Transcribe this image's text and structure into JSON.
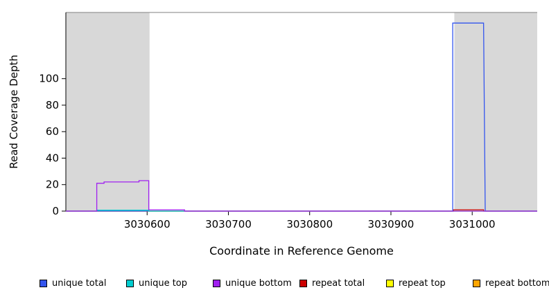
{
  "figure": {
    "background": "#FFFFFF",
    "band_color": "#D8D8D8",
    "top_border_color": "#808080",
    "axis_color": "#000000"
  },
  "chart_data": {
    "type": "line",
    "subtype": "step-coverage-profile",
    "title": "",
    "xlabel": "Coordinate in Reference Genome",
    "ylabel": "Read Coverage Depth",
    "xlim": [
      3030500,
      3031080
    ],
    "ylim": [
      0,
      150
    ],
    "xticks": [
      3030600,
      3030700,
      3030800,
      3030900,
      3031000
    ],
    "yticks": [
      0,
      20,
      40,
      60,
      80,
      100
    ],
    "grid": false,
    "legend_position": "bottom",
    "shaded_regions": [
      {
        "x": [
          3030500,
          3030603
        ],
        "note": "left masked region"
      },
      {
        "x": [
          3030978,
          3031080
        ],
        "note": "right masked region"
      }
    ],
    "series": [
      {
        "id": "repeat-bottom",
        "name": "repeat bottom",
        "color": "#FFA500",
        "points": [
          [
            3030500,
            0
          ],
          [
            3031080,
            0
          ]
        ]
      },
      {
        "id": "repeat-top",
        "name": "repeat top",
        "color": "#FFFF00",
        "points": [
          [
            3030500,
            0
          ],
          [
            3031080,
            0
          ]
        ]
      },
      {
        "id": "repeat-total",
        "name": "repeat total",
        "color": "#CC0000",
        "points": [
          [
            3030500,
            0
          ],
          [
            3030977,
            0
          ],
          [
            3030977,
            1
          ],
          [
            3031014,
            1
          ],
          [
            3031014,
            0
          ],
          [
            3031080,
            0
          ]
        ]
      },
      {
        "id": "unique-total",
        "name": "unique total",
        "color": "#3355EE",
        "points": [
          [
            3030500,
            0
          ],
          [
            3030976,
            0
          ],
          [
            3030976,
            142
          ],
          [
            3031014,
            142
          ],
          [
            3031016,
            0
          ],
          [
            3031080,
            0
          ]
        ]
      },
      {
        "id": "unique-top",
        "name": "unique top",
        "color": "#00CED1",
        "points": [
          [
            3030500,
            0
          ],
          [
            3030538,
            0
          ],
          [
            3030538,
            0.7
          ],
          [
            3030602,
            0.7
          ],
          [
            3030602,
            0
          ],
          [
            3031080,
            0
          ]
        ]
      },
      {
        "id": "unique-bottom",
        "name": "unique bottom",
        "color": "#A020F0",
        "points": [
          [
            3030500,
            0
          ],
          [
            3030538,
            0
          ],
          [
            3030538,
            21
          ],
          [
            3030547,
            21
          ],
          [
            3030547,
            22
          ],
          [
            3030590,
            22
          ],
          [
            3030590,
            23
          ],
          [
            3030602,
            23
          ],
          [
            3030602,
            1
          ],
          [
            3030646,
            1
          ],
          [
            3030646,
            0
          ],
          [
            3031080,
            0
          ]
        ]
      }
    ],
    "legend": [
      {
        "id": "unique-total",
        "label": "unique total",
        "color": "#3355EE"
      },
      {
        "id": "unique-top",
        "label": "unique top",
        "color": "#00CED1"
      },
      {
        "id": "unique-bottom",
        "label": "unique bottom",
        "color": "#A020F0"
      },
      {
        "id": "repeat-total",
        "label": "repeat total",
        "color": "#CC0000"
      },
      {
        "id": "repeat-top",
        "label": "repeat top",
        "color": "#FFFF00"
      },
      {
        "id": "repeat-bottom",
        "label": "repeat bottom",
        "color": "#FFA500"
      }
    ]
  }
}
